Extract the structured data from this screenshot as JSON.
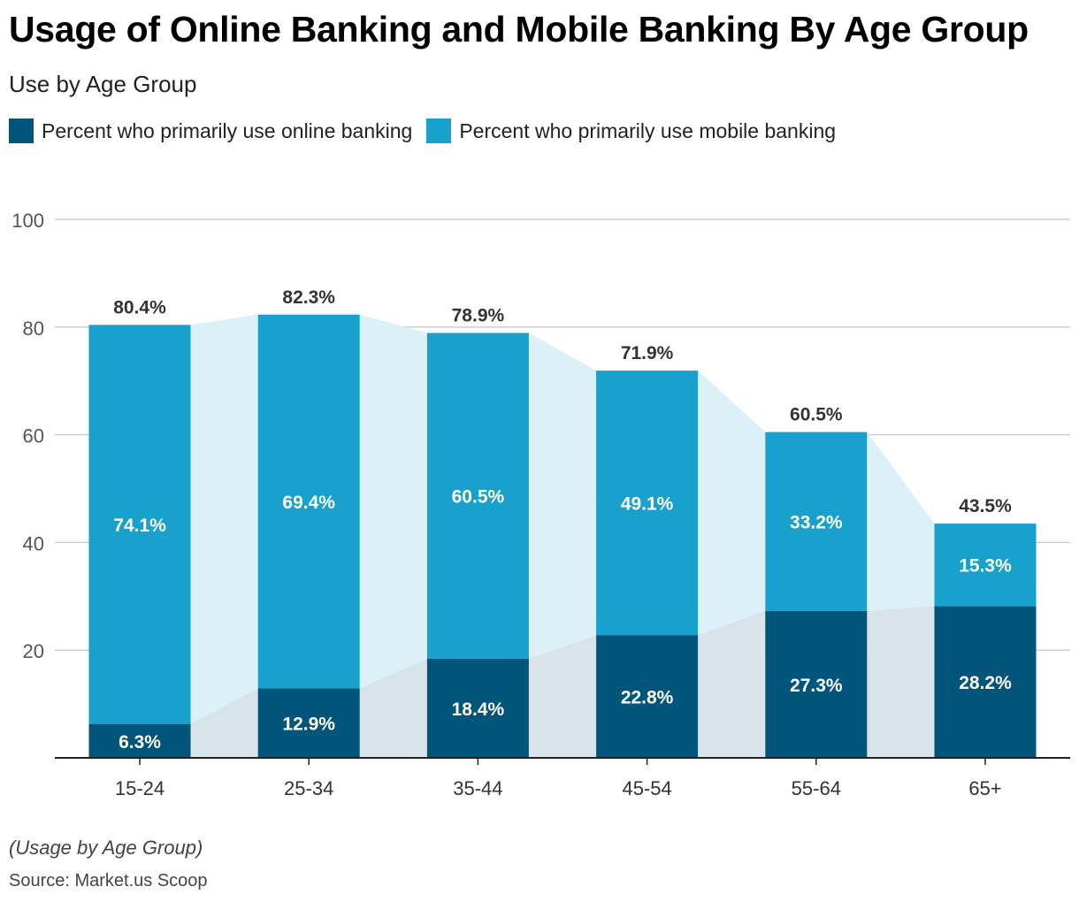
{
  "chart_data": {
    "type": "bar",
    "stacked": true,
    "title": "Usage of Online Banking and Mobile Banking By Age Group",
    "subtitle": "Use by Age Group",
    "categories": [
      "15-24",
      "25-34",
      "35-44",
      "45-54",
      "55-64",
      "65+"
    ],
    "series": [
      {
        "name": "Percent who primarily use online banking",
        "color": "#02557a",
        "values": [
          6.3,
          12.9,
          18.4,
          22.8,
          27.3,
          28.2
        ]
      },
      {
        "name": "Percent who primarily use mobile banking",
        "color": "#18a1cd",
        "values": [
          74.1,
          69.4,
          60.5,
          49.1,
          33.2,
          15.3
        ]
      }
    ],
    "totals": [
      80.4,
      82.3,
      78.9,
      71.9,
      60.5,
      43.5
    ],
    "ylim": [
      0,
      100
    ],
    "yticks": [
      20,
      40,
      60,
      80,
      100
    ],
    "grid": true,
    "legend": "top-left",
    "note": "(Usage by Age Group)",
    "source": "Source: Market.us Scoop"
  }
}
